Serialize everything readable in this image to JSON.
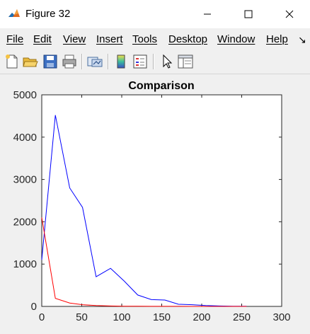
{
  "window": {
    "title": "Figure 32",
    "icon": "matlab-icon"
  },
  "menu": {
    "items": [
      {
        "label": "File",
        "name": "menu-file"
      },
      {
        "label": "Edit",
        "name": "menu-edit"
      },
      {
        "label": "View",
        "name": "menu-view"
      },
      {
        "label": "Insert",
        "name": "menu-insert"
      },
      {
        "label": "Tools",
        "name": "menu-tools"
      },
      {
        "label": "Desktop",
        "name": "menu-desktop"
      },
      {
        "label": "Window",
        "name": "menu-window"
      },
      {
        "label": "Help",
        "name": "menu-help"
      }
    ],
    "overflow_icon": "chevron-overflow-icon"
  },
  "toolbar": {
    "buttons": [
      "new-figure-icon",
      "open-file-icon",
      "save-icon",
      "print-icon",
      "link-plot-icon",
      "insert-colorbar-icon",
      "insert-legend-icon",
      "edit-plot-icon",
      "property-inspector-icon"
    ]
  },
  "chart_data": {
    "type": "line",
    "title": "Comparison",
    "xlabel": "",
    "ylabel": "",
    "xlim": [
      0,
      300
    ],
    "ylim": [
      0,
      5000
    ],
    "xticks": [
      0,
      50,
      100,
      150,
      200,
      250,
      300
    ],
    "yticks": [
      0,
      1000,
      2000,
      3000,
      4000,
      5000
    ],
    "grid": false,
    "series": [
      {
        "color": "#0000ff",
        "x": [
          0,
          17,
          35,
          51,
          68,
          86,
          103,
          120,
          137,
          154,
          171,
          188,
          205,
          222,
          239,
          256
        ],
        "y": [
          1100,
          4520,
          2800,
          2340,
          700,
          900,
          600,
          270,
          160,
          150,
          50,
          40,
          20,
          10,
          5,
          3
        ]
      },
      {
        "color": "#ff0000",
        "x": [
          0,
          17,
          35,
          51,
          68,
          86,
          103,
          120,
          137,
          154,
          171,
          188,
          205,
          222,
          239,
          256
        ],
        "y": [
          2100,
          190,
          80,
          40,
          20,
          10,
          5,
          3,
          2,
          1,
          1,
          0,
          0,
          0,
          0,
          0
        ]
      }
    ]
  }
}
